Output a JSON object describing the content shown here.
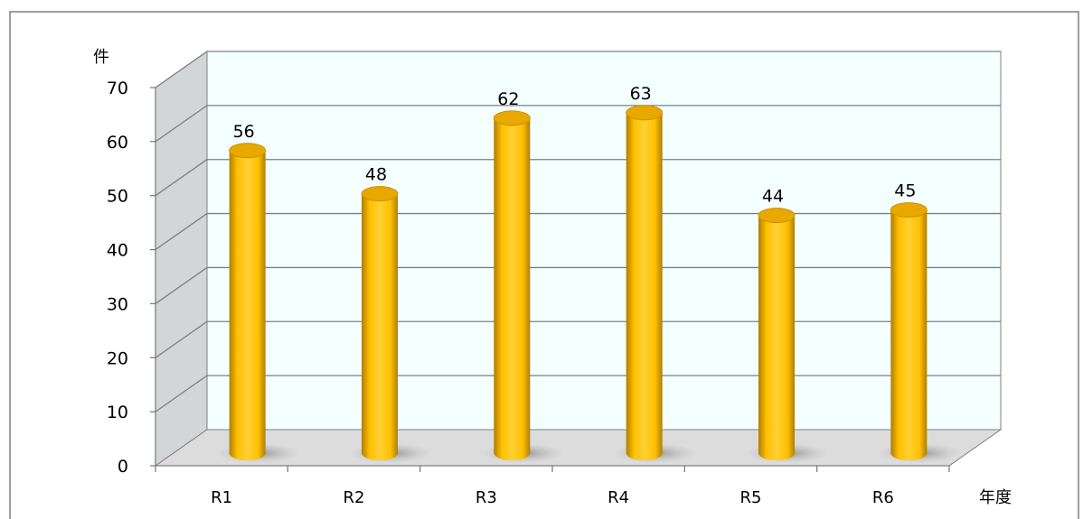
{
  "chart_data": {
    "type": "bar",
    "style": "3d-cylinder",
    "categories": [
      "R1",
      "R2",
      "R3",
      "R4",
      "R5",
      "R6"
    ],
    "values": [
      56,
      48,
      62,
      63,
      44,
      45
    ],
    "data_labels": [
      "56",
      "48",
      "62",
      "63",
      "44",
      "45"
    ],
    "y_unit": "件",
    "x_unit": "年度",
    "ylim": [
      0,
      70
    ],
    "y_ticks": [
      0,
      10,
      20,
      30,
      40,
      50,
      60,
      70
    ],
    "y_tick_labels": [
      "0",
      "10",
      "20",
      "30",
      "40",
      "50",
      "60",
      "70"
    ],
    "grid": true,
    "legend": "none",
    "colors": {
      "bar_face": "#FFC000",
      "bar_shade": "#C99300",
      "bar_top": "#E8A800",
      "back_wall": "#F4FFFF",
      "side_wall": "#D3D6D6",
      "floor": "#DCDCDC",
      "grid_line": "#7F7F7F"
    }
  }
}
